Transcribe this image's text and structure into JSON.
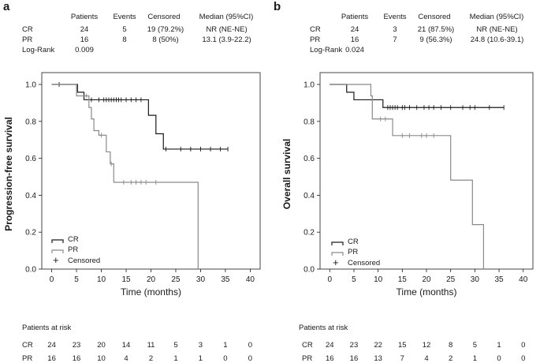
{
  "panels": [
    {
      "label": "a",
      "stats": {
        "headers": [
          "Patients",
          "Events",
          "Censored",
          "Median (95%CI)"
        ],
        "rows": [
          {
            "group": "CR",
            "patients": "24",
            "events": "5",
            "censored": "19 (79.2%)",
            "median": "NR (NE-NE)"
          },
          {
            "group": "PR",
            "patients": "16",
            "events": "8",
            "censored": "8 (50%)",
            "median": "13.1 (3.9-22.2)"
          }
        ],
        "logrank_label": "Log-Rank",
        "logrank_value": "0.009"
      },
      "legend": {
        "cr": "CR",
        "pr": "PR",
        "censored": "Censored",
        "censored_symbol": "+"
      },
      "risk": {
        "title": "Patients at risk",
        "rows": [
          {
            "group": "CR",
            "values": [
              "24",
              "23",
              "20",
              "14",
              "11",
              "5",
              "3",
              "1",
              "0"
            ]
          },
          {
            "group": "PR",
            "values": [
              "16",
              "16",
              "10",
              "4",
              "2",
              "1",
              "1",
              "0",
              "0"
            ]
          }
        ]
      }
    },
    {
      "label": "b",
      "stats": {
        "headers": [
          "Patients",
          "Events",
          "Censored",
          "Median (95%CI)"
        ],
        "rows": [
          {
            "group": "CR",
            "patients": "24",
            "events": "3",
            "censored": "21 (87.5%)",
            "median": "NR (NE-NE)"
          },
          {
            "group": "PR",
            "patients": "16",
            "events": "7",
            "censored": "9 (56.3%)",
            "median": "24.8 (10.6-39.1)"
          }
        ],
        "logrank_label": "Log-Rank",
        "logrank_value": "0.024"
      },
      "legend": {
        "cr": "CR",
        "pr": "PR",
        "censored": "Censored",
        "censored_symbol": "+"
      },
      "risk": {
        "title": "Patients at risk",
        "rows": [
          {
            "group": "CR",
            "values": [
              "24",
              "23",
              "22",
              "15",
              "12",
              "8",
              "5",
              "1",
              "0"
            ]
          },
          {
            "group": "PR",
            "values": [
              "16",
              "16",
              "13",
              "7",
              "4",
              "2",
              "1",
              "0",
              "0"
            ]
          }
        ]
      }
    }
  ],
  "chart_data": [
    {
      "type": "line",
      "step": true,
      "title": "",
      "xlabel": "Time (months)",
      "ylabel": "Progression-free survival",
      "xlim": [
        -2,
        42
      ],
      "ylim": [
        0,
        1.03
      ],
      "xticks": [
        0,
        5,
        10,
        15,
        20,
        25,
        30,
        35,
        40
      ],
      "yticks": [
        "0.0",
        "0.2",
        "0.4",
        "0.6",
        "0.8",
        "1.0"
      ],
      "series": [
        {
          "name": "CR",
          "color": "#1a1a1a",
          "steps": [
            [
              0,
              1.0
            ],
            [
              5.2,
              0.958
            ],
            [
              6.5,
              0.917
            ],
            [
              19.5,
              0.833
            ],
            [
              21.0,
              0.733
            ],
            [
              22.5,
              0.65
            ],
            [
              35.5,
              0.65
            ]
          ],
          "censored": [
            [
              1.5,
              1.0
            ],
            [
              8,
              0.917
            ],
            [
              9.5,
              0.917
            ],
            [
              10.5,
              0.917
            ],
            [
              11,
              0.917
            ],
            [
              11.5,
              0.917
            ],
            [
              12,
              0.917
            ],
            [
              12.5,
              0.917
            ],
            [
              13,
              0.917
            ],
            [
              13.5,
              0.917
            ],
            [
              14,
              0.917
            ],
            [
              15,
              0.917
            ],
            [
              16,
              0.917
            ],
            [
              17,
              0.917
            ],
            [
              18,
              0.917
            ],
            [
              23,
              0.65
            ],
            [
              26,
              0.65
            ],
            [
              28,
              0.65
            ],
            [
              30,
              0.65
            ],
            [
              32,
              0.65
            ],
            [
              34,
              0.65
            ],
            [
              35.5,
              0.65
            ]
          ]
        },
        {
          "name": "PR",
          "color": "#8a8a8a",
          "steps": [
            [
              0,
              1.0
            ],
            [
              5.0,
              0.938
            ],
            [
              7.5,
              0.875
            ],
            [
              8.0,
              0.813
            ],
            [
              8.5,
              0.75
            ],
            [
              9.5,
              0.725
            ],
            [
              11.0,
              0.635
            ],
            [
              11.8,
              0.57
            ],
            [
              12.5,
              0.47
            ],
            [
              29.5,
              0.0
            ]
          ],
          "censored": [
            [
              7,
              0.938
            ],
            [
              10,
              0.725
            ],
            [
              12,
              0.57
            ],
            [
              14.5,
              0.47
            ],
            [
              16,
              0.47
            ],
            [
              17,
              0.47
            ],
            [
              18,
              0.47
            ],
            [
              19,
              0.47
            ],
            [
              21,
              0.47
            ]
          ]
        }
      ]
    },
    {
      "type": "line",
      "step": true,
      "title": "",
      "xlabel": "Time (months)",
      "ylabel": "Overall survival",
      "xlim": [
        -2,
        42
      ],
      "ylim": [
        0,
        1.03
      ],
      "xticks": [
        0,
        5,
        10,
        15,
        20,
        25,
        30,
        35,
        40
      ],
      "yticks": [
        "0.0",
        "0.2",
        "0.4",
        "0.6",
        "0.8",
        "1.0"
      ],
      "series": [
        {
          "name": "CR",
          "color": "#1a1a1a",
          "steps": [
            [
              0,
              1.0
            ],
            [
              3.5,
              0.958
            ],
            [
              5.0,
              0.917
            ],
            [
              11.0,
              0.875
            ],
            [
              36,
              0.875
            ]
          ],
          "censored": [
            [
              12,
              0.875
            ],
            [
              12.5,
              0.875
            ],
            [
              13,
              0.875
            ],
            [
              13.5,
              0.875
            ],
            [
              14,
              0.875
            ],
            [
              15,
              0.875
            ],
            [
              15.5,
              0.875
            ],
            [
              16.5,
              0.875
            ],
            [
              18,
              0.875
            ],
            [
              19.5,
              0.875
            ],
            [
              20.5,
              0.875
            ],
            [
              21.5,
              0.875
            ],
            [
              23,
              0.875
            ],
            [
              25,
              0.875
            ],
            [
              27.5,
              0.875
            ],
            [
              29,
              0.875
            ],
            [
              30,
              0.875
            ],
            [
              33,
              0.875
            ],
            [
              36,
              0.875
            ]
          ]
        },
        {
          "name": "PR",
          "color": "#8a8a8a",
          "steps": [
            [
              0,
              1.0
            ],
            [
              8.5,
              0.938
            ],
            [
              8.8,
              0.813
            ],
            [
              13.0,
              0.723
            ],
            [
              25.0,
              0.482
            ],
            [
              29.5,
              0.241
            ],
            [
              31.8,
              0.0
            ]
          ],
          "censored": [
            [
              10.5,
              0.813
            ],
            [
              11.5,
              0.813
            ],
            [
              15,
              0.723
            ],
            [
              16.5,
              0.723
            ],
            [
              19,
              0.723
            ],
            [
              20,
              0.723
            ],
            [
              21.5,
              0.723
            ]
          ]
        }
      ]
    }
  ]
}
